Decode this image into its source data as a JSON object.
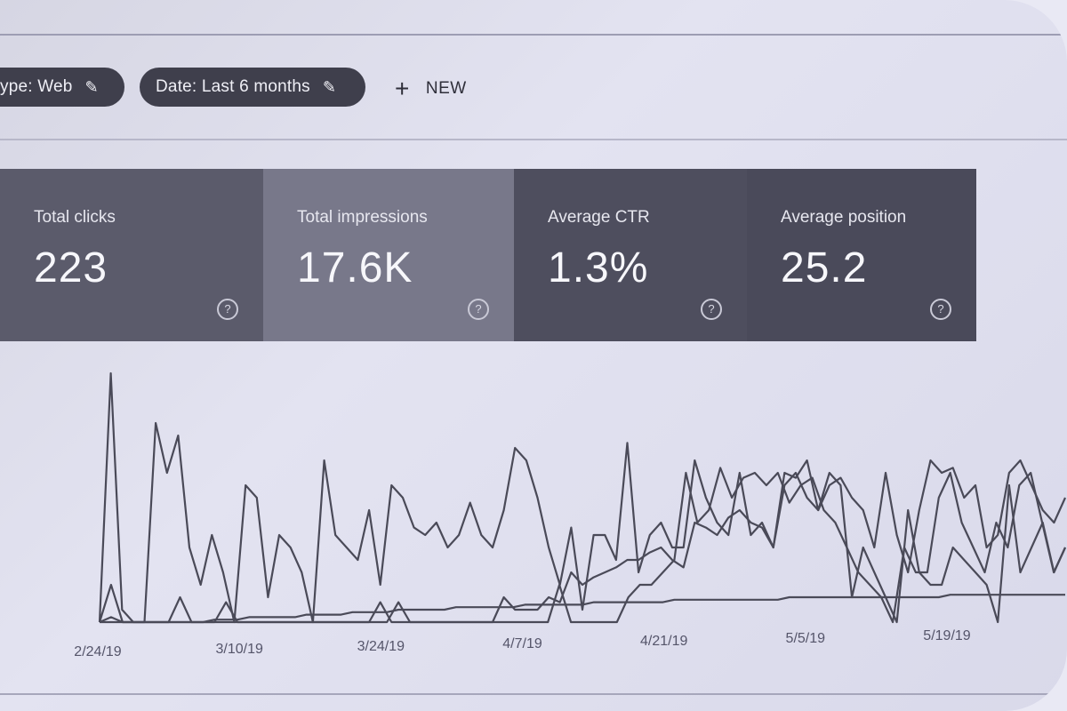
{
  "toolbar": {
    "type_chip_label": "ype: Web",
    "date_chip_label": "Date: Last 6 months",
    "new_label": "NEW",
    "pencil_icon": "pencil-icon",
    "plus_icon": "plus-icon"
  },
  "metrics": [
    {
      "title": "Total clicks",
      "value": "223"
    },
    {
      "title": "Total impressions",
      "value": "17.6K"
    },
    {
      "title": "Average CTR",
      "value": "1.3%"
    },
    {
      "title": "Average position",
      "value": "25.2"
    }
  ],
  "colors": {
    "card_clicks": "#5b5b6b",
    "card_impressions": "#78788a",
    "card_ctr": "#4e4e5e",
    "card_position": "#4a4a5a",
    "line": "#4a4a58"
  },
  "chart_data": {
    "type": "line",
    "x_tick_labels": [
      "2/24/19",
      "3/10/19",
      "3/24/19",
      "4/7/19",
      "4/21/19",
      "5/5/19",
      "5/19/19"
    ],
    "y_range": [
      0,
      100
    ],
    "grid": false,
    "series": [
      {
        "values": [
          0,
          100,
          5,
          0,
          0,
          80,
          60,
          75,
          30,
          15,
          35,
          20,
          0,
          55,
          50,
          10,
          35,
          30,
          20,
          0,
          65,
          35,
          30,
          25,
          45,
          15,
          55,
          50,
          38,
          35,
          40,
          30,
          35,
          48,
          35,
          30,
          45,
          70,
          65,
          50,
          30,
          15,
          38,
          5,
          35,
          35,
          25,
          72,
          20,
          35,
          40,
          30,
          30,
          65,
          50,
          40,
          35,
          60,
          35,
          40,
          30,
          60,
          58,
          65,
          45,
          60,
          55,
          10,
          30,
          20,
          10,
          0,
          45,
          20,
          15,
          15,
          30,
          25,
          20,
          15,
          0,
          55,
          20,
          30,
          40,
          20,
          30
        ]
      },
      {
        "values": [
          0,
          15,
          0,
          0,
          0,
          0,
          0,
          10,
          0,
          0,
          0,
          8,
          0,
          0,
          0,
          0,
          0,
          0,
          0,
          0,
          0,
          0,
          0,
          0,
          0,
          0,
          8,
          0,
          0,
          0,
          0,
          0,
          0,
          0,
          0,
          0,
          0,
          0,
          0,
          0,
          15,
          0,
          0,
          0,
          0,
          0,
          10,
          15,
          15,
          20,
          25,
          60,
          40,
          45,
          62,
          50,
          58,
          60,
          55,
          60,
          48,
          55,
          58,
          45,
          40,
          30,
          20,
          15,
          10,
          0,
          30,
          20,
          20,
          50,
          60,
          40,
          30,
          20,
          40,
          30,
          55,
          60,
          40,
          20,
          30
        ]
      },
      {
        "values": [
          0,
          0,
          0,
          0,
          0,
          0,
          0,
          0,
          0,
          0,
          0,
          0,
          0,
          0,
          0,
          0,
          0,
          0,
          0,
          0,
          0,
          0,
          0,
          0,
          0,
          8,
          0,
          0,
          0,
          0,
          0,
          0,
          0,
          0,
          0,
          0,
          10,
          5,
          5,
          5,
          10,
          8,
          20,
          15,
          18,
          20,
          22,
          25,
          25,
          28,
          30,
          25,
          22,
          40,
          38,
          35,
          42,
          45,
          40,
          38,
          30,
          55,
          60,
          50,
          45,
          55,
          58,
          50,
          45,
          30,
          60,
          35,
          20,
          45,
          65,
          60,
          62,
          50,
          55,
          30,
          35,
          60,
          65,
          55,
          45,
          40,
          50
        ]
      },
      {
        "values": [
          0,
          2,
          0,
          0,
          0,
          0,
          0,
          0,
          0,
          0,
          1,
          1,
          1,
          2,
          2,
          2,
          2,
          2,
          3,
          3,
          3,
          3,
          4,
          4,
          4,
          4,
          5,
          5,
          5,
          5,
          5,
          6,
          6,
          6,
          6,
          6,
          6,
          7,
          7,
          7,
          7,
          7,
          7,
          8,
          8,
          8,
          8,
          8,
          8,
          8,
          9,
          9,
          9,
          9,
          9,
          9,
          9,
          9,
          9,
          9,
          10,
          10,
          10,
          10,
          10,
          10,
          10,
          10,
          10,
          10,
          10,
          10,
          10,
          10,
          11,
          11,
          11,
          11,
          11,
          11,
          11,
          11,
          11,
          11,
          11
        ]
      }
    ]
  }
}
